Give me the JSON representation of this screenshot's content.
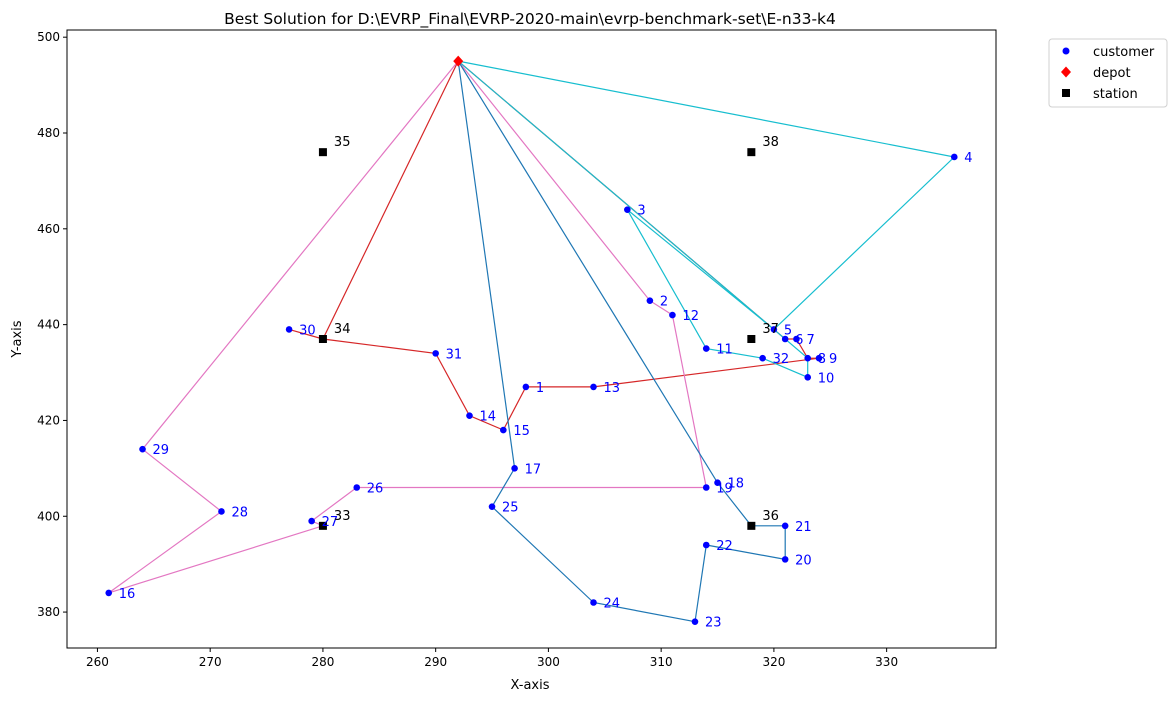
{
  "chart_data": {
    "type": "scatter",
    "title": "Best Solution for D:\\EVRP_Final\\EVRP-2020-main\\evrp-benchmark-set\\E-n33-k4",
    "xlabel": "X-axis",
    "ylabel": "Y-axis",
    "xlim": [
      257.3,
      339.7
    ],
    "ylim": [
      372.5,
      501.5
    ],
    "xticks": [
      260,
      270,
      280,
      290,
      300,
      310,
      320,
      330
    ],
    "yticks": [
      380,
      400,
      420,
      440,
      460,
      480,
      500
    ],
    "grid": false,
    "legend_position": "outside-top-right",
    "legend": [
      {
        "label": "customer",
        "marker": "circle",
        "color": "#0000ff"
      },
      {
        "label": "depot",
        "marker": "diamond",
        "color": "#ff0000"
      },
      {
        "label": "station",
        "marker": "square",
        "color": "#000000"
      }
    ],
    "depot": {
      "label": "",
      "x": 292,
      "y": 495
    },
    "customers": [
      {
        "label": "1",
        "x": 298,
        "y": 427
      },
      {
        "label": "2",
        "x": 309,
        "y": 445
      },
      {
        "label": "3",
        "x": 307,
        "y": 464
      },
      {
        "label": "4",
        "x": 336,
        "y": 475
      },
      {
        "label": "5",
        "x": 320,
        "y": 439
      },
      {
        "label": "6",
        "x": 321,
        "y": 437
      },
      {
        "label": "7",
        "x": 322,
        "y": 437
      },
      {
        "label": "8",
        "x": 323,
        "y": 433
      },
      {
        "label": "9",
        "x": 324,
        "y": 433
      },
      {
        "label": "10",
        "x": 323,
        "y": 429
      },
      {
        "label": "11",
        "x": 314,
        "y": 435
      },
      {
        "label": "12",
        "x": 311,
        "y": 442
      },
      {
        "label": "13",
        "x": 304,
        "y": 427
      },
      {
        "label": "14",
        "x": 293,
        "y": 421
      },
      {
        "label": "15",
        "x": 296,
        "y": 418
      },
      {
        "label": "16",
        "x": 261,
        "y": 384
      },
      {
        "label": "17",
        "x": 297,
        "y": 410
      },
      {
        "label": "18",
        "x": 315,
        "y": 407
      },
      {
        "label": "19",
        "x": 314,
        "y": 406
      },
      {
        "label": "20",
        "x": 321,
        "y": 391
      },
      {
        "label": "21",
        "x": 321,
        "y": 398
      },
      {
        "label": "22",
        "x": 314,
        "y": 394
      },
      {
        "label": "23",
        "x": 313,
        "y": 378
      },
      {
        "label": "24",
        "x": 304,
        "y": 382
      },
      {
        "label": "25",
        "x": 295,
        "y": 402
      },
      {
        "label": "26",
        "x": 283,
        "y": 406
      },
      {
        "label": "27",
        "x": 279,
        "y": 399
      },
      {
        "label": "28",
        "x": 271,
        "y": 401
      },
      {
        "label": "29",
        "x": 264,
        "y": 414
      },
      {
        "label": "30",
        "x": 277,
        "y": 439
      },
      {
        "label": "31",
        "x": 290,
        "y": 434
      },
      {
        "label": "32",
        "x": 319,
        "y": 433
      }
    ],
    "stations": [
      {
        "label": "33",
        "x": 280,
        "y": 398
      },
      {
        "label": "34",
        "x": 280,
        "y": 437
      },
      {
        "label": "35",
        "x": 280,
        "y": 476
      },
      {
        "label": "36",
        "x": 318,
        "y": 398
      },
      {
        "label": "37",
        "x": 318,
        "y": 437
      },
      {
        "label": "38",
        "x": 318,
        "y": 476
      }
    ],
    "series": [
      {
        "color": "#d62728",
        "path": [
          [
            292,
            495
          ],
          [
            280,
            437
          ],
          [
            277,
            439
          ],
          [
            280,
            437
          ],
          [
            290,
            434
          ],
          [
            293,
            421
          ],
          [
            296,
            418
          ],
          [
            298,
            427
          ],
          [
            304,
            427
          ],
          [
            324,
            433
          ],
          [
            323,
            433
          ],
          [
            322,
            437
          ],
          [
            321,
            437
          ],
          [
            320,
            439
          ],
          [
            292,
            495
          ]
        ]
      },
      {
        "color": "#e377c2",
        "path": [
          [
            292,
            495
          ],
          [
            309,
            445
          ],
          [
            311,
            442
          ],
          [
            314,
            406
          ],
          [
            283,
            406
          ],
          [
            279,
            399
          ],
          [
            280,
            398
          ],
          [
            261,
            384
          ],
          [
            271,
            401
          ],
          [
            264,
            414
          ],
          [
            292,
            495
          ]
        ]
      },
      {
        "color": "#17becf",
        "path": [
          [
            292,
            495
          ],
          [
            336,
            475
          ],
          [
            320,
            439
          ],
          [
            307,
            464
          ],
          [
            314,
            435
          ],
          [
            319,
            433
          ],
          [
            323,
            429
          ],
          [
            323,
            433
          ],
          [
            320,
            439
          ],
          [
            292,
            495
          ]
        ]
      },
      {
        "color": "#1f77b4",
        "path": [
          [
            292,
            495
          ],
          [
            297,
            410
          ],
          [
            295,
            402
          ],
          [
            304,
            382
          ],
          [
            313,
            378
          ],
          [
            314,
            394
          ],
          [
            321,
            391
          ],
          [
            321,
            398
          ],
          [
            318,
            398
          ],
          [
            315,
            407
          ],
          [
            292,
            495
          ]
        ]
      }
    ]
  }
}
